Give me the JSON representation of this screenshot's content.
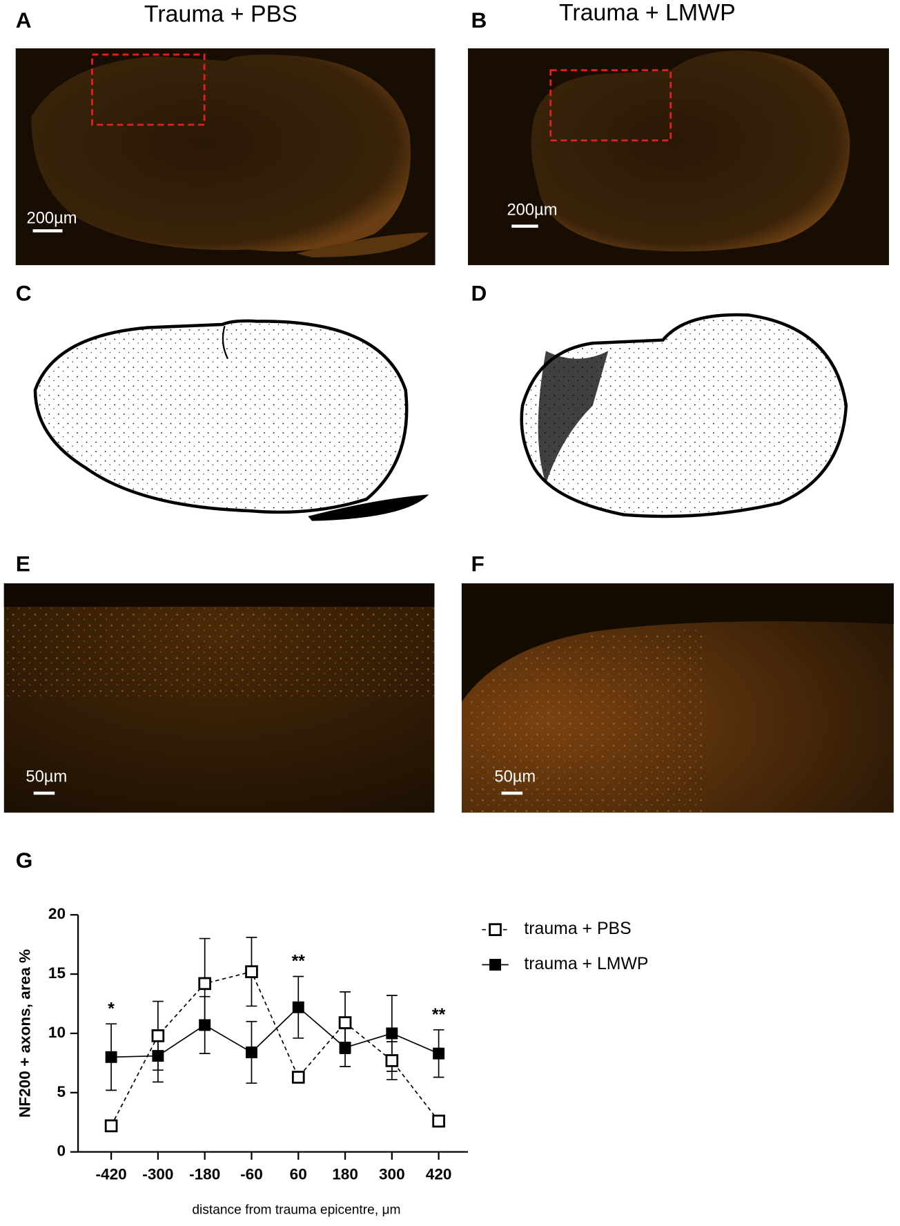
{
  "panels": [
    {
      "label": "A",
      "title": "Trauma + PBS",
      "scale_bar": "200µm"
    },
    {
      "label": "B",
      "title": "Trauma + LMWP",
      "scale_bar": "200µm"
    },
    {
      "label": "C"
    },
    {
      "label": "D"
    },
    {
      "label": "E",
      "scale_bar": "50µm"
    },
    {
      "label": "F",
      "scale_bar": "50µm"
    },
    {
      "label": "G"
    }
  ],
  "chart_data": {
    "type": "line",
    "xlabel": "distance from trauma epicentre, μm",
    "ylabel": "NF200 + axons, area %",
    "x": [
      -420,
      -300,
      -180,
      -60,
      60,
      180,
      300,
      420
    ],
    "series": [
      {
        "name": "trauma + PBS",
        "color": "#000000",
        "marker": "open-square",
        "dashed": true,
        "values": [
          2.2,
          9.8,
          14.2,
          15.2,
          6.3,
          10.9,
          7.7,
          2.6
        ],
        "errors": [
          0.2,
          2.9,
          3.8,
          2.9,
          0.2,
          2.6,
          1.6,
          0.2
        ]
      },
      {
        "name": "trauma + LMWP",
        "color": "#000000",
        "marker": "filled-square",
        "dashed": false,
        "values": [
          8.0,
          8.1,
          10.7,
          8.4,
          12.2,
          8.8,
          10.0,
          8.3
        ],
        "errors": [
          2.8,
          2.2,
          2.4,
          2.6,
          2.6,
          1.6,
          3.2,
          2.0
        ]
      }
    ],
    "annotations": [
      {
        "text": "*",
        "x": -420
      },
      {
        "text": "**",
        "x": 60
      },
      {
        "text": "**",
        "x": 420
      }
    ],
    "xlim": [
      -505,
      495
    ],
    "xticks": [
      -420,
      -300,
      -180,
      -60,
      60,
      180,
      300,
      420
    ],
    "ylim": [
      0,
      20
    ],
    "yticks": [
      0,
      5,
      10,
      15,
      20
    ],
    "grid": false
  }
}
